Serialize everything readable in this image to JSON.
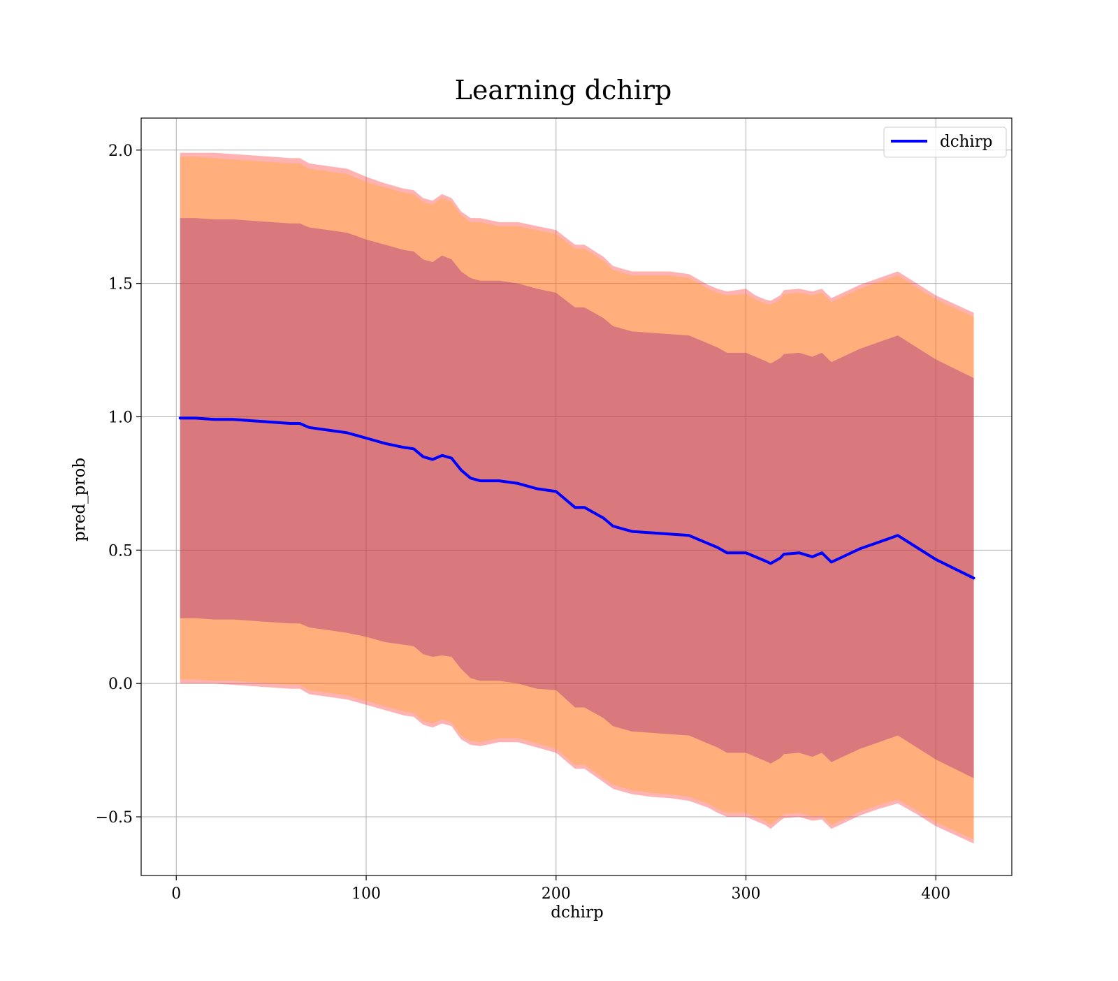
{
  "chart_data": {
    "type": "line",
    "title": "Learning dchirp",
    "xlabel": "dchirp",
    "ylabel": "pred_prob",
    "xlim": [
      -18.5,
      440
    ],
    "ylim": [
      -0.72,
      2.12
    ],
    "xticks": [
      0,
      100,
      200,
      300,
      400
    ],
    "xtick_labels": [
      "0",
      "100",
      "200",
      "300",
      "400"
    ],
    "yticks": [
      -0.5,
      0.0,
      0.5,
      1.0,
      1.5,
      2.0
    ],
    "ytick_labels": [
      "−0.5",
      "0.0",
      "0.5",
      "1.0",
      "1.5",
      "2.0"
    ],
    "grid": true,
    "legend_position": "top-right",
    "series": [
      {
        "name": "dchirp",
        "color": "#0000ff",
        "x": [
          2,
          10,
          20,
          30,
          40,
          50,
          60,
          65,
          70,
          80,
          90,
          100,
          110,
          120,
          125,
          130,
          135,
          140,
          145,
          150,
          155,
          160,
          170,
          180,
          190,
          200,
          210,
          215,
          225,
          230,
          240,
          250,
          260,
          270,
          280,
          285,
          290,
          300,
          305,
          310,
          313,
          318,
          320,
          328,
          335,
          340,
          345,
          360,
          370,
          380,
          390,
          400,
          420
        ],
        "y": [
          0.995,
          0.995,
          0.99,
          0.99,
          0.985,
          0.98,
          0.975,
          0.975,
          0.96,
          0.95,
          0.94,
          0.92,
          0.9,
          0.885,
          0.88,
          0.85,
          0.84,
          0.855,
          0.845,
          0.8,
          0.77,
          0.76,
          0.76,
          0.75,
          0.73,
          0.72,
          0.66,
          0.66,
          0.62,
          0.59,
          0.57,
          0.565,
          0.56,
          0.555,
          0.525,
          0.51,
          0.49,
          0.49,
          0.475,
          0.46,
          0.45,
          0.47,
          0.485,
          0.49,
          0.475,
          0.49,
          0.455,
          0.505,
          0.53,
          0.555,
          0.51,
          0.465,
          0.395
        ]
      }
    ],
    "bands": [
      {
        "color": "#ff0000",
        "opacity": 0.3,
        "x": [
          2,
          10,
          20,
          30,
          40,
          50,
          60,
          65,
          70,
          80,
          90,
          100,
          110,
          120,
          125,
          130,
          135,
          140,
          145,
          150,
          155,
          160,
          170,
          180,
          190,
          200,
          210,
          215,
          225,
          230,
          240,
          250,
          260,
          270,
          280,
          285,
          290,
          300,
          305,
          310,
          313,
          318,
          320,
          328,
          335,
          340,
          345,
          360,
          370,
          380,
          390,
          400,
          420
        ],
        "upper": [
          1.99,
          1.99,
          1.99,
          1.985,
          1.98,
          1.975,
          1.97,
          1.97,
          1.95,
          1.94,
          1.93,
          1.9,
          1.875,
          1.855,
          1.85,
          1.82,
          1.81,
          1.835,
          1.82,
          1.77,
          1.745,
          1.745,
          1.73,
          1.73,
          1.715,
          1.7,
          1.645,
          1.645,
          1.6,
          1.565,
          1.545,
          1.545,
          1.545,
          1.535,
          1.495,
          1.48,
          1.47,
          1.48,
          1.455,
          1.44,
          1.435,
          1.455,
          1.475,
          1.48,
          1.47,
          1.48,
          1.445,
          1.495,
          1.52,
          1.545,
          1.5,
          1.455,
          1.39
        ],
        "lower": [
          0.0,
          0.0,
          0.0,
          -0.005,
          -0.01,
          -0.015,
          -0.02,
          -0.02,
          -0.04,
          -0.05,
          -0.06,
          -0.08,
          -0.1,
          -0.12,
          -0.125,
          -0.155,
          -0.165,
          -0.15,
          -0.16,
          -0.21,
          -0.23,
          -0.235,
          -0.22,
          -0.22,
          -0.24,
          -0.26,
          -0.32,
          -0.32,
          -0.37,
          -0.395,
          -0.415,
          -0.425,
          -0.43,
          -0.44,
          -0.465,
          -0.485,
          -0.5,
          -0.5,
          -0.515,
          -0.53,
          -0.545,
          -0.515,
          -0.505,
          -0.5,
          -0.515,
          -0.51,
          -0.545,
          -0.495,
          -0.47,
          -0.45,
          -0.49,
          -0.535,
          -0.6
        ]
      },
      {
        "color": "#ffa500",
        "opacity": 0.3,
        "x": [
          2,
          10,
          20,
          30,
          40,
          50,
          60,
          65,
          70,
          80,
          90,
          100,
          110,
          120,
          125,
          130,
          135,
          140,
          145,
          150,
          155,
          160,
          170,
          180,
          190,
          200,
          210,
          215,
          225,
          230,
          240,
          250,
          260,
          270,
          280,
          285,
          290,
          300,
          305,
          310,
          313,
          318,
          320,
          328,
          335,
          340,
          345,
          360,
          370,
          380,
          390,
          400,
          420
        ],
        "upper": [
          1.975,
          1.975,
          1.97,
          1.965,
          1.96,
          1.955,
          1.95,
          1.95,
          1.93,
          1.92,
          1.91,
          1.88,
          1.86,
          1.84,
          1.835,
          1.805,
          1.795,
          1.82,
          1.805,
          1.755,
          1.73,
          1.73,
          1.715,
          1.715,
          1.7,
          1.685,
          1.63,
          1.63,
          1.585,
          1.55,
          1.53,
          1.53,
          1.53,
          1.52,
          1.48,
          1.465,
          1.455,
          1.46,
          1.44,
          1.425,
          1.42,
          1.44,
          1.46,
          1.465,
          1.455,
          1.465,
          1.43,
          1.48,
          1.505,
          1.53,
          1.485,
          1.44,
          1.375
        ],
        "lower": [
          0.015,
          0.015,
          0.01,
          0.01,
          0.005,
          0.0,
          -0.005,
          -0.005,
          -0.025,
          -0.035,
          -0.045,
          -0.065,
          -0.085,
          -0.105,
          -0.11,
          -0.14,
          -0.15,
          -0.135,
          -0.145,
          -0.195,
          -0.215,
          -0.22,
          -0.205,
          -0.205,
          -0.225,
          -0.245,
          -0.305,
          -0.305,
          -0.355,
          -0.38,
          -0.4,
          -0.41,
          -0.415,
          -0.425,
          -0.45,
          -0.47,
          -0.485,
          -0.485,
          -0.5,
          -0.515,
          -0.53,
          -0.5,
          -0.49,
          -0.485,
          -0.5,
          -0.495,
          -0.53,
          -0.48,
          -0.455,
          -0.435,
          -0.475,
          -0.52,
          -0.585
        ]
      },
      {
        "color": "#800080",
        "opacity": 0.3,
        "x": [
          2,
          10,
          20,
          30,
          40,
          50,
          60,
          65,
          70,
          80,
          90,
          100,
          110,
          120,
          125,
          130,
          135,
          140,
          145,
          150,
          155,
          160,
          170,
          180,
          190,
          200,
          210,
          215,
          225,
          230,
          240,
          250,
          260,
          270,
          280,
          285,
          290,
          300,
          305,
          310,
          313,
          318,
          320,
          328,
          335,
          340,
          345,
          360,
          370,
          380,
          390,
          400,
          420
        ],
        "upper": [
          1.745,
          1.745,
          1.74,
          1.74,
          1.735,
          1.73,
          1.725,
          1.725,
          1.71,
          1.7,
          1.69,
          1.665,
          1.645,
          1.625,
          1.62,
          1.59,
          1.58,
          1.605,
          1.59,
          1.545,
          1.52,
          1.51,
          1.51,
          1.5,
          1.48,
          1.465,
          1.41,
          1.41,
          1.37,
          1.34,
          1.32,
          1.315,
          1.31,
          1.305,
          1.275,
          1.26,
          1.24,
          1.24,
          1.225,
          1.21,
          1.2,
          1.22,
          1.235,
          1.24,
          1.225,
          1.24,
          1.205,
          1.255,
          1.28,
          1.305,
          1.26,
          1.215,
          1.145
        ],
        "lower": [
          0.245,
          0.245,
          0.24,
          0.24,
          0.235,
          0.23,
          0.225,
          0.225,
          0.21,
          0.2,
          0.19,
          0.175,
          0.155,
          0.145,
          0.14,
          0.11,
          0.1,
          0.105,
          0.1,
          0.055,
          0.02,
          0.01,
          0.01,
          0.0,
          -0.02,
          -0.025,
          -0.09,
          -0.09,
          -0.13,
          -0.16,
          -0.18,
          -0.185,
          -0.19,
          -0.195,
          -0.225,
          -0.24,
          -0.26,
          -0.26,
          -0.275,
          -0.29,
          -0.3,
          -0.28,
          -0.265,
          -0.26,
          -0.275,
          -0.26,
          -0.295,
          -0.245,
          -0.22,
          -0.195,
          -0.24,
          -0.285,
          -0.355
        ]
      }
    ]
  }
}
